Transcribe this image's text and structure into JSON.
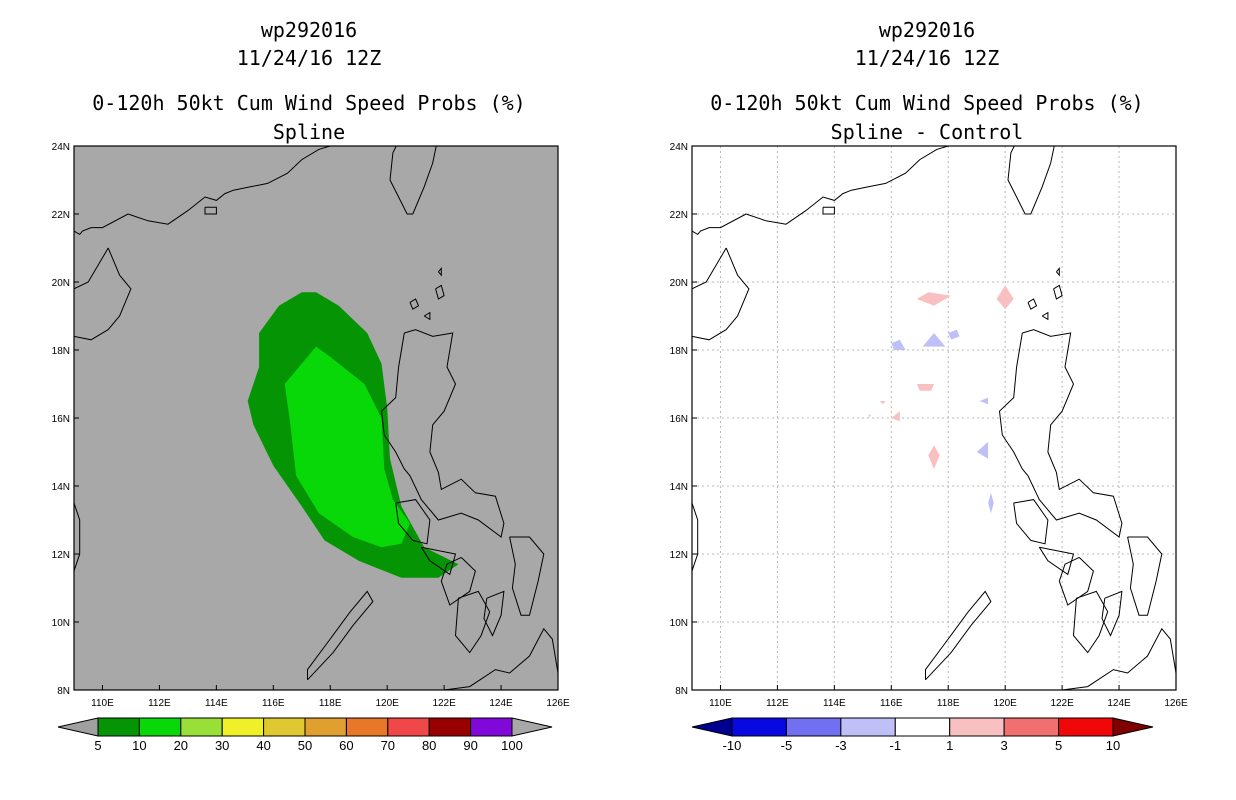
{
  "panels": [
    {
      "storm_id": "wp292016",
      "datetime": "11/24/16 12Z",
      "product": "0-120h 50kt Cum Wind Speed Probs (%)",
      "subtitle": "Spline",
      "background": "#a8a8a8",
      "grid": false,
      "colorbar": {
        "colors": [
          "#049404",
          "#08d808",
          "#98e038",
          "#f0f028",
          "#e0c830",
          "#e0a030",
          "#e87828",
          "#f04848",
          "#980000",
          "#8008d8"
        ],
        "labels": [
          "5",
          "10",
          "20",
          "30",
          "40",
          "50",
          "60",
          "70",
          "80",
          "90",
          "100"
        ],
        "under_color": "#a0a0a0",
        "over_color": "#a8a8a8"
      }
    },
    {
      "storm_id": "wp292016",
      "datetime": "11/24/16 12Z",
      "product": "0-120h 50kt Cum Wind Speed Probs (%)",
      "subtitle": "Spline - Control",
      "background": "#ffffff",
      "grid": true,
      "colorbar": {
        "colors": [
          "#0808e0",
          "#7070f0",
          "#c0c0f8",
          "#ffffff",
          "#f8c0c0",
          "#f07070",
          "#f00808"
        ],
        "labels": [
          "-10",
          "-5",
          "-3",
          "-1",
          "1",
          "3",
          "5",
          "10"
        ],
        "under_color": "#000090",
        "over_color": "#800000"
      }
    }
  ],
  "axes": {
    "lon_range": [
      109,
      126
    ],
    "lat_range": [
      8,
      24
    ],
    "lon_ticks": [
      "110E",
      "112E",
      "114E",
      "116E",
      "118E",
      "120E",
      "122E",
      "124E",
      "126E"
    ],
    "lat_ticks": [
      "8N",
      "10N",
      "12N",
      "14N",
      "16N",
      "18N",
      "20N",
      "22N",
      "24N"
    ]
  },
  "prob_fields": [
    {
      "label": "5",
      "color": "#049404",
      "polygon": [
        [
          117.0,
          19.7
        ],
        [
          117.5,
          19.7
        ],
        [
          118.3,
          19.3
        ],
        [
          119.3,
          18.5
        ],
        [
          119.8,
          17.6
        ],
        [
          120.0,
          16.3
        ],
        [
          120.1,
          14.8
        ],
        [
          120.5,
          13.4
        ],
        [
          121.3,
          12.2
        ],
        [
          122.5,
          11.7
        ],
        [
          121.8,
          11.3
        ],
        [
          120.5,
          11.3
        ],
        [
          119.0,
          11.8
        ],
        [
          117.8,
          12.4
        ],
        [
          117.0,
          13.4
        ],
        [
          116.0,
          14.6
        ],
        [
          115.3,
          15.8
        ],
        [
          115.1,
          16.5
        ],
        [
          115.5,
          17.5
        ],
        [
          115.5,
          18.5
        ],
        [
          116.2,
          19.3
        ]
      ]
    },
    {
      "label": "10",
      "color": "#08d808",
      "polygon": [
        [
          117.5,
          18.1
        ],
        [
          118.0,
          17.8
        ],
        [
          119.2,
          17.0
        ],
        [
          119.8,
          16.0
        ],
        [
          119.9,
          14.5
        ],
        [
          120.2,
          13.6
        ],
        [
          120.8,
          12.9
        ],
        [
          120.5,
          12.3
        ],
        [
          119.8,
          12.2
        ],
        [
          118.8,
          12.5
        ],
        [
          117.6,
          13.2
        ],
        [
          116.8,
          14.3
        ],
        [
          116.6,
          15.8
        ],
        [
          116.4,
          17.0
        ]
      ]
    }
  ],
  "diff_fields": [
    {
      "label": "3",
      "color": "#f8c0c0",
      "polygon": [
        [
          116.9,
          19.5
        ],
        [
          117.3,
          19.7
        ],
        [
          118.1,
          19.6
        ],
        [
          117.5,
          19.3
        ]
      ]
    },
    {
      "label": "3",
      "color": "#f8c0c0",
      "polygon": [
        [
          119.7,
          19.5
        ],
        [
          120.0,
          19.9
        ],
        [
          120.3,
          19.5
        ],
        [
          120.0,
          19.2
        ]
      ]
    },
    {
      "label": "-3",
      "color": "#c0c0f8",
      "polygon": [
        [
          117.1,
          18.1
        ],
        [
          117.5,
          18.5
        ],
        [
          117.9,
          18.1
        ]
      ]
    },
    {
      "label": "-3",
      "color": "#c0c0f8",
      "polygon": [
        [
          116.0,
          18.2
        ],
        [
          116.3,
          18.3
        ],
        [
          116.5,
          18.0
        ],
        [
          116.1,
          18.0
        ]
      ]
    },
    {
      "label": "-3",
      "color": "#c0c0f8",
      "polygon": [
        [
          118.0,
          18.5
        ],
        [
          118.3,
          18.6
        ],
        [
          118.4,
          18.4
        ],
        [
          118.1,
          18.3
        ]
      ]
    },
    {
      "label": "3",
      "color": "#f8c0c0",
      "polygon": [
        [
          116.9,
          17.0
        ],
        [
          117.5,
          17.0
        ],
        [
          117.4,
          16.8
        ],
        [
          117.0,
          16.8
        ]
      ]
    },
    {
      "label": "-3",
      "color": "#c0c0f8",
      "polygon": [
        [
          119.1,
          16.5
        ],
        [
          119.4,
          16.6
        ],
        [
          119.4,
          16.4
        ]
      ]
    },
    {
      "label": "3",
      "color": "#f8c0c0",
      "polygon": [
        [
          115.6,
          16.5
        ],
        [
          115.8,
          16.5
        ],
        [
          115.7,
          16.4
        ]
      ]
    },
    {
      "label": "3",
      "color": "#f8c0c0",
      "polygon": [
        [
          116.0,
          16.0
        ],
        [
          116.3,
          16.2
        ],
        [
          116.3,
          15.9
        ]
      ]
    },
    {
      "label": "3",
      "color": "#f8c0c0",
      "polygon": [
        [
          115.2,
          16.1
        ],
        [
          115.3,
          16.1
        ],
        [
          115.2,
          16.0
        ]
      ]
    },
    {
      "label": "3",
      "color": "#f8c0c0",
      "polygon": [
        [
          117.5,
          15.2
        ],
        [
          117.7,
          14.9
        ],
        [
          117.5,
          14.5
        ],
        [
          117.3,
          14.9
        ]
      ]
    },
    {
      "label": "-3",
      "color": "#c0c0f8",
      "polygon": [
        [
          119.0,
          15.0
        ],
        [
          119.4,
          15.3
        ],
        [
          119.4,
          14.8
        ]
      ]
    },
    {
      "label": "-3",
      "color": "#c0c0f8",
      "polygon": [
        [
          119.5,
          13.8
        ],
        [
          119.6,
          13.5
        ],
        [
          119.5,
          13.2
        ],
        [
          119.4,
          13.5
        ]
      ]
    }
  ],
  "coastlines": [
    [
      [
        110.9,
        22.0
      ],
      [
        110.0,
        21.6
      ],
      [
        109.6,
        21.6
      ],
      [
        109.3,
        21.5
      ],
      [
        109.2,
        21.4
      ],
      [
        109.0,
        21.5
      ]
    ],
    [
      [
        110.9,
        22.0
      ],
      [
        111.6,
        21.8
      ],
      [
        112.3,
        21.7
      ],
      [
        113.0,
        22.1
      ],
      [
        113.6,
        22.5
      ],
      [
        114.0,
        22.4
      ],
      [
        114.3,
        22.6
      ],
      [
        114.6,
        22.7
      ],
      [
        115.2,
        22.8
      ],
      [
        115.8,
        22.9
      ],
      [
        116.5,
        23.2
      ],
      [
        117.0,
        23.6
      ],
      [
        117.6,
        23.9
      ],
      [
        118.0,
        24.0
      ]
    ],
    [
      [
        121.0,
        25.0
      ],
      [
        121.5,
        24.8
      ],
      [
        121.8,
        24.3
      ],
      [
        121.6,
        23.5
      ],
      [
        121.3,
        22.8
      ],
      [
        120.9,
        22.0
      ],
      [
        120.7,
        22.0
      ],
      [
        120.4,
        22.5
      ],
      [
        120.1,
        23.0
      ],
      [
        120.2,
        23.8
      ],
      [
        120.5,
        24.3
      ],
      [
        121.0,
        25.0
      ]
    ],
    [
      [
        110.2,
        21.0
      ],
      [
        110.6,
        20.2
      ],
      [
        111.0,
        19.8
      ],
      [
        110.6,
        19.0
      ],
      [
        110.2,
        18.6
      ],
      [
        109.6,
        18.3
      ],
      [
        109.0,
        18.4
      ]
    ],
    [
      [
        109.0,
        19.8
      ],
      [
        109.5,
        20.0
      ],
      [
        110.2,
        21.0
      ]
    ],
    [
      [
        120.6,
        18.5
      ],
      [
        121.0,
        18.6
      ],
      [
        121.6,
        18.4
      ],
      [
        122.3,
        18.5
      ],
      [
        122.1,
        17.5
      ],
      [
        122.4,
        17.0
      ],
      [
        122.0,
        16.2
      ],
      [
        121.6,
        15.8
      ],
      [
        121.5,
        15.0
      ],
      [
        121.8,
        14.4
      ],
      [
        121.9,
        13.9
      ],
      [
        122.6,
        14.2
      ],
      [
        123.1,
        13.8
      ],
      [
        123.8,
        13.7
      ],
      [
        124.1,
        12.9
      ],
      [
        124.0,
        12.5
      ],
      [
        123.2,
        13.0
      ],
      [
        122.6,
        13.2
      ],
      [
        121.8,
        13.0
      ],
      [
        121.2,
        13.6
      ],
      [
        120.8,
        14.3
      ],
      [
        120.6,
        14.5
      ],
      [
        120.3,
        15.0
      ],
      [
        119.9,
        15.5
      ],
      [
        119.8,
        16.2
      ],
      [
        120.3,
        16.6
      ],
      [
        120.4,
        17.5
      ],
      [
        120.6,
        18.5
      ]
    ],
    [
      [
        120.3,
        13.5
      ],
      [
        121.0,
        13.6
      ],
      [
        121.5,
        13.0
      ],
      [
        121.4,
        12.3
      ],
      [
        120.9,
        12.4
      ],
      [
        120.4,
        12.9
      ],
      [
        120.3,
        13.5
      ]
    ],
    [
      [
        122.6,
        11.9
      ],
      [
        123.1,
        11.5
      ],
      [
        122.9,
        10.9
      ],
      [
        122.2,
        10.5
      ],
      [
        121.9,
        11.2
      ],
      [
        122.1,
        11.7
      ],
      [
        122.6,
        11.9
      ]
    ],
    [
      [
        122.5,
        10.7
      ],
      [
        123.2,
        10.9
      ],
      [
        123.6,
        10.3
      ],
      [
        123.3,
        9.6
      ],
      [
        122.9,
        9.1
      ],
      [
        122.4,
        9.6
      ],
      [
        122.5,
        10.7
      ]
    ],
    [
      [
        123.5,
        10.7
      ],
      [
        124.1,
        10.9
      ],
      [
        124.0,
        10.2
      ],
      [
        123.7,
        9.6
      ],
      [
        123.4,
        10.1
      ],
      [
        123.5,
        10.7
      ]
    ],
    [
      [
        124.3,
        12.5
      ],
      [
        125.0,
        12.5
      ],
      [
        125.5,
        12.0
      ],
      [
        125.3,
        11.2
      ],
      [
        125.0,
        10.2
      ],
      [
        124.7,
        10.2
      ],
      [
        124.4,
        11.0
      ],
      [
        124.5,
        11.7
      ],
      [
        124.3,
        12.5
      ]
    ],
    [
      [
        121.2,
        12.2
      ],
      [
        122.4,
        12.0
      ],
      [
        122.2,
        11.4
      ],
      [
        121.5,
        11.8
      ],
      [
        121.2,
        12.2
      ]
    ],
    [
      [
        122.0,
        8.0
      ],
      [
        122.9,
        8.1
      ],
      [
        123.8,
        8.6
      ],
      [
        124.3,
        8.5
      ],
      [
        125.0,
        9.0
      ],
      [
        125.5,
        9.8
      ],
      [
        125.8,
        9.5
      ],
      [
        126.0,
        8.5
      ],
      [
        126.0,
        8.0
      ]
    ],
    [
      [
        117.2,
        8.3
      ],
      [
        118.1,
        9.1
      ],
      [
        118.8,
        9.9
      ],
      [
        119.5,
        10.6
      ],
      [
        119.3,
        10.9
      ],
      [
        118.7,
        10.3
      ],
      [
        118.0,
        9.5
      ],
      [
        117.2,
        8.6
      ],
      [
        117.2,
        8.3
      ]
    ],
    [
      [
        121.7,
        19.8
      ],
      [
        121.9,
        19.9
      ],
      [
        122.0,
        19.6
      ],
      [
        121.8,
        19.5
      ],
      [
        121.7,
        19.8
      ]
    ],
    [
      [
        121.8,
        20.3
      ],
      [
        121.9,
        20.4
      ],
      [
        121.9,
        20.2
      ],
      [
        121.8,
        20.3
      ]
    ],
    [
      [
        120.8,
        19.4
      ],
      [
        121.0,
        19.5
      ],
      [
        121.1,
        19.3
      ],
      [
        120.9,
        19.2
      ],
      [
        120.8,
        19.4
      ]
    ],
    [
      [
        121.3,
        19.0
      ],
      [
        121.5,
        19.1
      ],
      [
        121.5,
        18.9
      ],
      [
        121.3,
        19.0
      ]
    ],
    [
      [
        113.6,
        22.2
      ],
      [
        114.0,
        22.2
      ],
      [
        114.0,
        22.0
      ],
      [
        113.6,
        22.0
      ],
      [
        113.6,
        22.2
      ]
    ],
    [
      [
        109.0,
        13.5
      ],
      [
        109.2,
        13.0
      ],
      [
        109.2,
        12.0
      ],
      [
        109.0,
        11.5
      ]
    ]
  ]
}
